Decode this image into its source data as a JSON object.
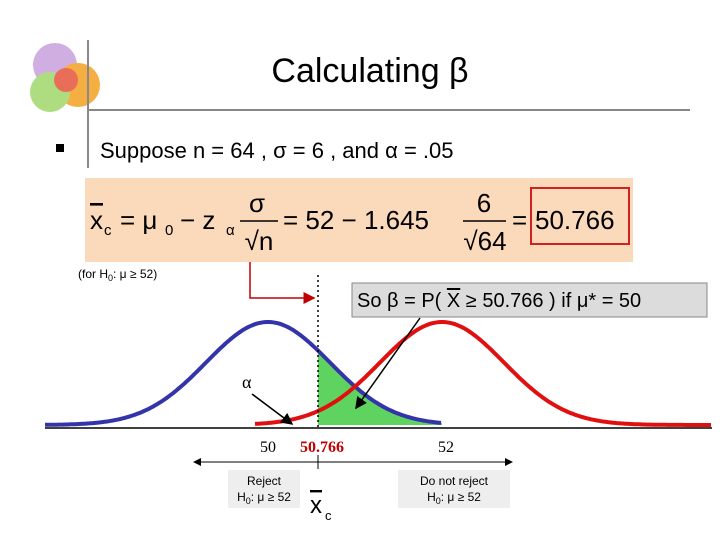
{
  "slide": {
    "title": "Calculating β",
    "bullet": "Suppose n = 64 , σ = 6 , and α = .05",
    "formula": {
      "xbar": "x",
      "xbar_sub": "c",
      "eq1": "= μ",
      "mu_sub": "0",
      "minus_z": "− z",
      "z_sub": "α",
      "num1": "σ",
      "den1": "√n",
      "eq2": "= 52 − 1.645",
      "num2": "6",
      "den2": "√64",
      "eq3": "=",
      "result": "50.766"
    },
    "note": {
      "pre": "(for H",
      "sub": "0",
      "post": ": μ ≥ 52)"
    },
    "callout": {
      "pre": "So β = P(",
      "xbar": "X",
      "post": "≥ 50.766 ) if μ* = 50"
    },
    "alpha_label": "α",
    "axis_labels": [
      "50",
      "50.766",
      "52"
    ],
    "reject": {
      "line1": "Reject",
      "pre": "H",
      "sub": "0",
      "post": ": μ ≥ 52"
    },
    "do_not_reject": {
      "line1": "Do not reject",
      "pre": "H",
      "sub": "0",
      "post": ": μ ≥ 52"
    },
    "xc_label": {
      "main": "x",
      "sub": "c"
    }
  }
}
